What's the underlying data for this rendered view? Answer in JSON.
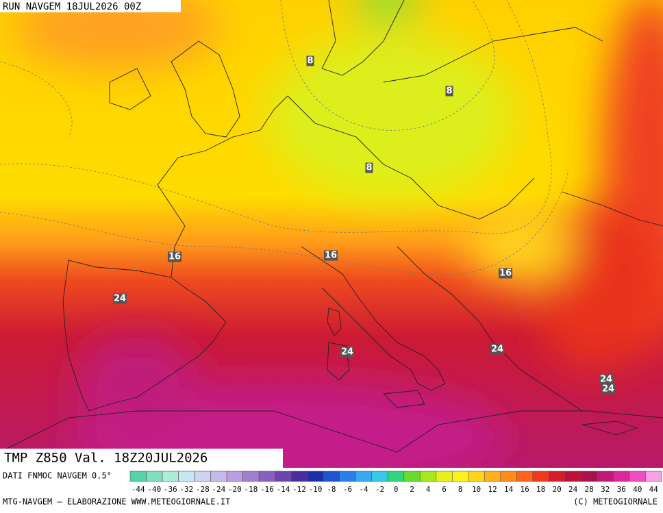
{
  "header": {
    "run": "RUN NAVGEM 18JUL2026 00Z"
  },
  "map": {
    "contour_labels": [
      8,
      8,
      8,
      16,
      16,
      16,
      24,
      24,
      24,
      24,
      24
    ]
  },
  "footer": {
    "title": "TMP Z850 Val. 18Z20JUL2026",
    "credit": "MTG-NAVGEM – ELABORAZIONE WWW.METEOGIORNALE.IT",
    "copyright": "(C) METEOGIORNALE"
  },
  "legend": {
    "source": "DATI FNMOC NAVGEM 0.5°",
    "labels": [
      -44,
      -40,
      -36,
      -32,
      -28,
      -24,
      -20,
      -18,
      -16,
      -14,
      -12,
      -10,
      -8,
      -6,
      -4,
      -2,
      0,
      2,
      4,
      6,
      8,
      10,
      12,
      14,
      16,
      18,
      20,
      24,
      28,
      32,
      36,
      40,
      44
    ],
    "colors": [
      "#55d3a8",
      "#7de0c0",
      "#a9ecd8",
      "#c8e6f2",
      "#cdd3f0",
      "#c6b9ea",
      "#b79ee0",
      "#a07ed2",
      "#8a5fc2",
      "#6f44b0",
      "#4a2ea0",
      "#1c2fa8",
      "#1e54d0",
      "#2a7fe8",
      "#3aa8f0",
      "#35c8e8",
      "#2ed67e",
      "#66dd2e",
      "#a8e81e",
      "#e8ef1a",
      "#fff21a",
      "#ffd41a",
      "#ffb01a",
      "#ff8c1a",
      "#ff641a",
      "#f0381e",
      "#d81c28",
      "#bc1238",
      "#a8104e",
      "#c01878",
      "#dc289c",
      "#f04cc4",
      "#f8a0e4"
    ]
  }
}
